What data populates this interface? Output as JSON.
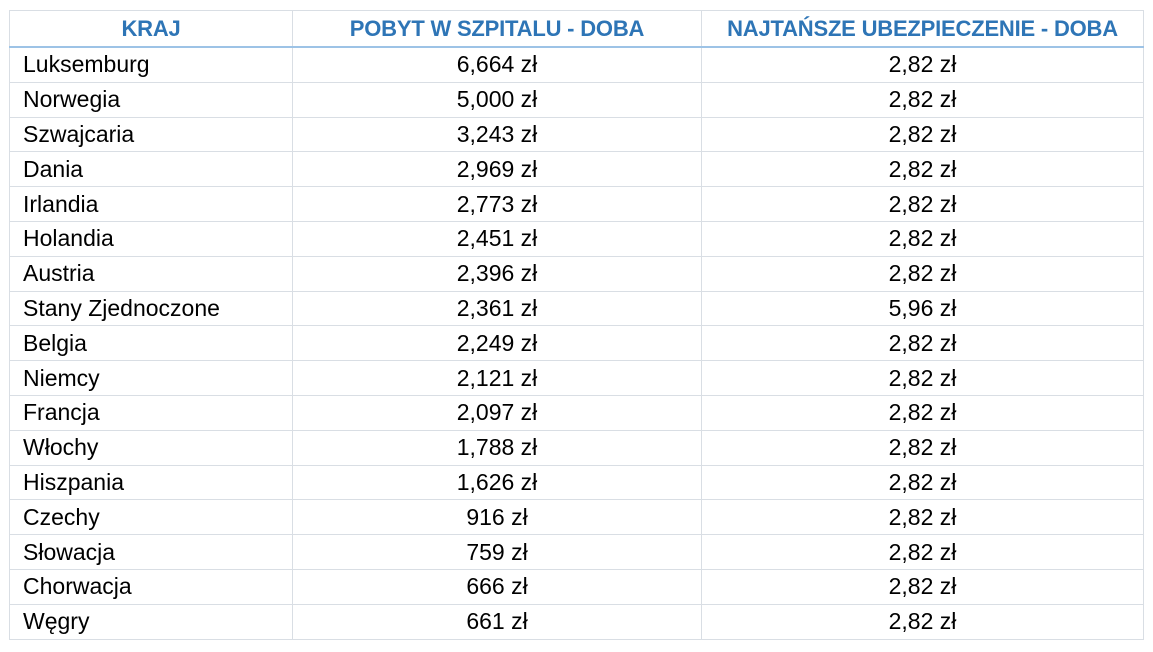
{
  "table": {
    "headers": [
      "KRAJ",
      "POBYT W SZPITALU - DOBA",
      "NAJTAŃSZE UBEZPIECZENIE - DOBA"
    ],
    "rows": [
      {
        "country": "Luksemburg",
        "hospital": "6,664 zł",
        "insurance": "2,82 zł"
      },
      {
        "country": "Norwegia",
        "hospital": "5,000 zł",
        "insurance": "2,82 zł"
      },
      {
        "country": "Szwajcaria",
        "hospital": "3,243 zł",
        "insurance": "2,82 zł"
      },
      {
        "country": "Dania",
        "hospital": "2,969 zł",
        "insurance": "2,82 zł"
      },
      {
        "country": "Irlandia",
        "hospital": "2,773 zł",
        "insurance": "2,82 zł"
      },
      {
        "country": "Holandia",
        "hospital": "2,451 zł",
        "insurance": "2,82 zł"
      },
      {
        "country": "Austria",
        "hospital": "2,396 zł",
        "insurance": "2,82 zł"
      },
      {
        "country": "Stany Zjednoczone",
        "hospital": "2,361 zł",
        "insurance": "5,96 zł"
      },
      {
        "country": "Belgia",
        "hospital": "2,249 zł",
        "insurance": "2,82 zł"
      },
      {
        "country": "Niemcy",
        "hospital": "2,121 zł",
        "insurance": "2,82 zł"
      },
      {
        "country": "Francja",
        "hospital": "2,097 zł",
        "insurance": "2,82 zł"
      },
      {
        "country": "Włochy",
        "hospital": "1,788 zł",
        "insurance": "2,82 zł"
      },
      {
        "country": "Hiszpania",
        "hospital": "1,626 zł",
        "insurance": "2,82 zł"
      },
      {
        "country": "Czechy",
        "hospital": "916 zł",
        "insurance": "2,82 zł"
      },
      {
        "country": "Słowacja",
        "hospital": "759 zł",
        "insurance": "2,82 zł"
      },
      {
        "country": "Chorwacja",
        "hospital": "666 zł",
        "insurance": "2,82 zł"
      },
      {
        "country": "Węgry",
        "hospital": "661 zł",
        "insurance": "2,82 zł"
      }
    ]
  },
  "colors": {
    "header_text": "#2e75b6",
    "grid_line": "#d9dee4",
    "header_rule": "#9dc3e6"
  }
}
